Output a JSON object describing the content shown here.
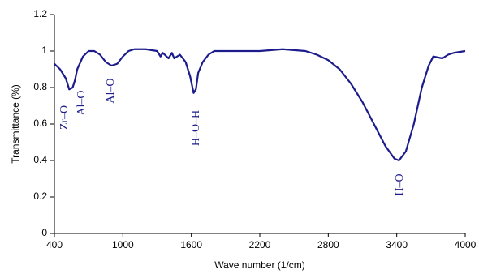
{
  "chart_data": {
    "type": "line",
    "x_label": "Wave number (1/cm)",
    "y_label": "Transmittance (%)",
    "x": [
      400,
      450,
      500,
      530,
      560,
      580,
      600,
      650,
      700,
      750,
      800,
      850,
      900,
      950,
      1000,
      1050,
      1100,
      1200,
      1300,
      1330,
      1350,
      1400,
      1430,
      1450,
      1500,
      1550,
      1590,
      1620,
      1640,
      1660,
      1700,
      1750,
      1800,
      2000,
      2200,
      2400,
      2600,
      2700,
      2800,
      2900,
      3000,
      3100,
      3200,
      3300,
      3380,
      3420,
      3480,
      3550,
      3620,
      3680,
      3720,
      3800,
      3850,
      3900,
      4000
    ],
    "series": [
      {
        "name": "Transmittance",
        "color": "#1c1c8c",
        "values": [
          0.93,
          0.9,
          0.85,
          0.79,
          0.8,
          0.84,
          0.9,
          0.97,
          1.0,
          1.0,
          0.98,
          0.94,
          0.92,
          0.93,
          0.97,
          1.0,
          1.01,
          1.01,
          1.0,
          0.97,
          0.99,
          0.96,
          0.99,
          0.96,
          0.98,
          0.94,
          0.86,
          0.77,
          0.79,
          0.88,
          0.94,
          0.98,
          1.0,
          1.0,
          1.0,
          1.01,
          1.0,
          0.98,
          0.95,
          0.9,
          0.82,
          0.72,
          0.6,
          0.48,
          0.41,
          0.4,
          0.45,
          0.6,
          0.8,
          0.92,
          0.97,
          0.96,
          0.98,
          0.99,
          1.0
        ]
      }
    ],
    "annotations": [
      "Zr–O",
      "Al–O",
      "Al–O",
      "H–O–H",
      "H–O"
    ],
    "annotation_color": "#1c1c8c",
    "xlim": [
      400,
      4000
    ],
    "xticks": [
      400,
      1000,
      1600,
      2200,
      2800,
      3400,
      4000
    ],
    "ylim": [
      0,
      1.2
    ],
    "yticks": [
      0,
      0.2,
      0.4,
      0.6,
      0.8,
      1,
      1.2
    ],
    "grid": false
  }
}
